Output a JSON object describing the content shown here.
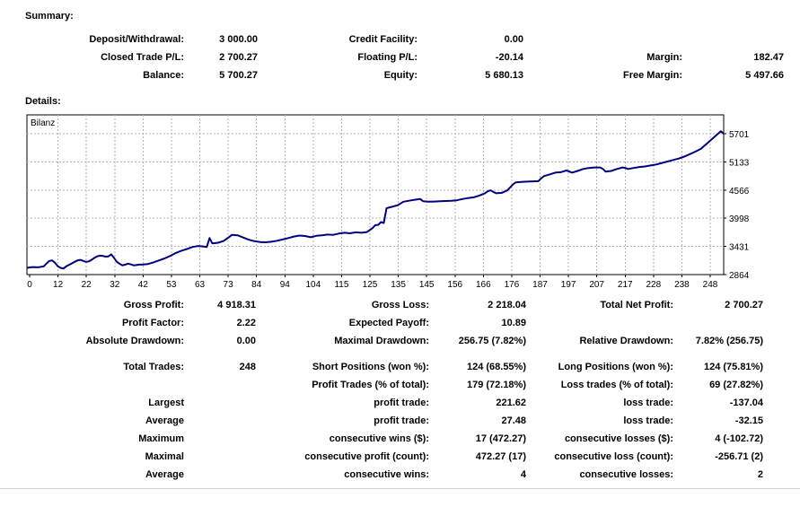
{
  "page": {
    "background": "#ffffff",
    "separator_color": "#c9d6e0",
    "text_color": "#000000"
  },
  "summary": {
    "heading": "Summary:",
    "rows": [
      [
        "Deposit/Withdrawal:",
        "3 000.00",
        "Credit Facility:",
        "0.00",
        "",
        ""
      ],
      [
        "Closed Trade P/L:",
        "2 700.27",
        "Floating P/L:",
        "-20.14",
        "Margin:",
        "182.47"
      ],
      [
        "Balance:",
        "5 700.27",
        "Equity:",
        "5 680.13",
        "Free Margin:",
        "5 497.66"
      ]
    ]
  },
  "details": {
    "heading": "Details:",
    "group1": [
      [
        "Gross Profit:",
        "4 918.31",
        "Gross Loss:",
        "2 218.04",
        "Total Net Profit:",
        "2 700.27"
      ],
      [
        "Profit Factor:",
        "2.22",
        "Expected Payoff:",
        "10.89",
        "",
        ""
      ],
      [
        "Absolute Drawdown:",
        "0.00",
        "Maximal Drawdown:",
        "256.75 (7.82%)",
        "Relative Drawdown:",
        "7.82% (256.75)"
      ]
    ],
    "group2": [
      [
        "Total Trades:",
        "248",
        "Short Positions (won %):",
        "124 (68.55%)",
        "Long Positions (won %):",
        "124 (75.81%)"
      ],
      [
        "",
        "",
        "Profit Trades (% of total):",
        "179 (72.18%)",
        "Loss trades (% of total):",
        "69 (27.82%)"
      ],
      [
        "Largest",
        "",
        "profit trade:",
        "221.62",
        "loss trade:",
        "-137.04"
      ],
      [
        "Average",
        "",
        "profit trade:",
        "27.48",
        "loss trade:",
        "-32.15"
      ],
      [
        "Maximum",
        "",
        "consecutive wins ($):",
        "17 (472.27)",
        "consecutive losses ($):",
        "4 (-102.72)"
      ],
      [
        "Maximal",
        "",
        "consecutive profit (count):",
        "472.27 (17)",
        "consecutive loss (count):",
        "-256.71 (2)"
      ],
      [
        "Average",
        "",
        "consecutive wins:",
        "4",
        "consecutive losses:",
        "2"
      ]
    ]
  },
  "chart_data": {
    "type": "line",
    "title": "Bilanz",
    "series_label": "Bilanz",
    "line_color": "#000080",
    "grid": "dashed",
    "grid_color": "#b3b3b3",
    "legend_position": "top-left-inside",
    "y_axis_side": "right",
    "x_range": [
      0,
      248
    ],
    "y_range": [
      2864,
      6079
    ],
    "x_tick_labels": [
      0,
      12,
      22,
      32,
      42,
      53,
      63,
      73,
      84,
      94,
      104,
      115,
      125,
      135,
      145,
      156,
      166,
      176,
      187,
      197,
      207,
      217,
      228,
      238,
      248
    ],
    "y_tick_labels": [
      5701,
      5133,
      4566,
      3998,
      3431,
      2864
    ],
    "series": [
      {
        "name": "Bilanz",
        "points": [
          [
            0,
            3000
          ],
          [
            2,
            3015
          ],
          [
            4,
            3010
          ],
          [
            6,
            3030
          ],
          [
            7,
            3090
          ],
          [
            8,
            3140
          ],
          [
            9,
            3150
          ],
          [
            10,
            3100
          ],
          [
            11,
            3030
          ],
          [
            12,
            3000
          ],
          [
            13,
            2985
          ],
          [
            14,
            3030
          ],
          [
            15,
            3060
          ],
          [
            16,
            3090
          ],
          [
            17,
            3120
          ],
          [
            18,
            3150
          ],
          [
            19,
            3160
          ],
          [
            20,
            3140
          ],
          [
            21,
            3120
          ],
          [
            22,
            3130
          ],
          [
            23,
            3160
          ],
          [
            24,
            3200
          ],
          [
            25,
            3230
          ],
          [
            26,
            3245
          ],
          [
            27,
            3240
          ],
          [
            28,
            3225
          ],
          [
            29,
            3230
          ],
          [
            30,
            3270
          ],
          [
            31,
            3200
          ],
          [
            32,
            3120
          ],
          [
            33,
            3080
          ],
          [
            34,
            3050
          ],
          [
            35,
            3065
          ],
          [
            36,
            3085
          ],
          [
            37,
            3070
          ],
          [
            38,
            3050
          ],
          [
            39,
            3055
          ],
          [
            40,
            3065
          ],
          [
            41,
            3065
          ],
          [
            43,
            3075
          ],
          [
            45,
            3110
          ],
          [
            47,
            3150
          ],
          [
            49,
            3190
          ],
          [
            51,
            3240
          ],
          [
            53,
            3300
          ],
          [
            55,
            3345
          ],
          [
            57,
            3380
          ],
          [
            59,
            3420
          ],
          [
            61,
            3440
          ],
          [
            63,
            3430
          ],
          [
            64,
            3420
          ],
          [
            65,
            3600
          ],
          [
            66,
            3490
          ],
          [
            68,
            3505
          ],
          [
            70,
            3540
          ],
          [
            72,
            3620
          ],
          [
            73,
            3665
          ],
          [
            75,
            3655
          ],
          [
            77,
            3610
          ],
          [
            79,
            3565
          ],
          [
            81,
            3535
          ],
          [
            83,
            3520
          ],
          [
            85,
            3515
          ],
          [
            87,
            3525
          ],
          [
            89,
            3545
          ],
          [
            91,
            3570
          ],
          [
            93,
            3600
          ],
          [
            95,
            3630
          ],
          [
            97,
            3650
          ],
          [
            99,
            3640
          ],
          [
            101,
            3615
          ],
          [
            103,
            3645
          ],
          [
            105,
            3655
          ],
          [
            107,
            3670
          ],
          [
            109,
            3665
          ],
          [
            111,
            3690
          ],
          [
            113,
            3705
          ],
          [
            115,
            3695
          ],
          [
            117,
            3715
          ],
          [
            119,
            3705
          ],
          [
            121,
            3720
          ],
          [
            122,
            3760
          ],
          [
            123,
            3800
          ],
          [
            124,
            3860
          ],
          [
            125,
            3865
          ],
          [
            126,
            3920
          ],
          [
            127,
            3900
          ],
          [
            128,
            4200
          ],
          [
            130,
            4230
          ],
          [
            132,
            4260
          ],
          [
            134,
            4330
          ],
          [
            136,
            4350
          ],
          [
            138,
            4370
          ],
          [
            140,
            4385
          ],
          [
            141,
            4340
          ],
          [
            143,
            4330
          ],
          [
            145,
            4335
          ],
          [
            147,
            4340
          ],
          [
            149,
            4345
          ],
          [
            151,
            4350
          ],
          [
            153,
            4360
          ],
          [
            155,
            4385
          ],
          [
            157,
            4405
          ],
          [
            159,
            4420
          ],
          [
            161,
            4455
          ],
          [
            163,
            4500
          ],
          [
            164,
            4540
          ],
          [
            165,
            4560
          ],
          [
            166,
            4530
          ],
          [
            167,
            4500
          ],
          [
            169,
            4510
          ],
          [
            171,
            4560
          ],
          [
            172,
            4620
          ],
          [
            173,
            4680
          ],
          [
            174,
            4720
          ],
          [
            176,
            4730
          ],
          [
            178,
            4735
          ],
          [
            180,
            4740
          ],
          [
            182,
            4745
          ],
          [
            183,
            4800
          ],
          [
            184,
            4845
          ],
          [
            186,
            4880
          ],
          [
            188,
            4915
          ],
          [
            190,
            4925
          ],
          [
            192,
            4960
          ],
          [
            193,
            4940
          ],
          [
            194,
            4915
          ],
          [
            196,
            4950
          ],
          [
            198,
            4990
          ],
          [
            200,
            5010
          ],
          [
            202,
            5020
          ],
          [
            204,
            5020
          ],
          [
            205,
            4990
          ],
          [
            206,
            4935
          ],
          [
            208,
            4950
          ],
          [
            210,
            4990
          ],
          [
            212,
            5020
          ],
          [
            213,
            5010
          ],
          [
            214,
            4990
          ],
          [
            216,
            5010
          ],
          [
            218,
            5030
          ],
          [
            220,
            5040
          ],
          [
            222,
            5060
          ],
          [
            224,
            5080
          ],
          [
            226,
            5110
          ],
          [
            228,
            5140
          ],
          [
            230,
            5170
          ],
          [
            232,
            5200
          ],
          [
            234,
            5240
          ],
          [
            236,
            5290
          ],
          [
            238,
            5340
          ],
          [
            240,
            5400
          ],
          [
            241,
            5450
          ],
          [
            242,
            5500
          ],
          [
            243,
            5550
          ],
          [
            244,
            5600
          ],
          [
            245,
            5650
          ],
          [
            246,
            5700
          ],
          [
            247,
            5750
          ],
          [
            248,
            5700
          ]
        ]
      }
    ]
  }
}
